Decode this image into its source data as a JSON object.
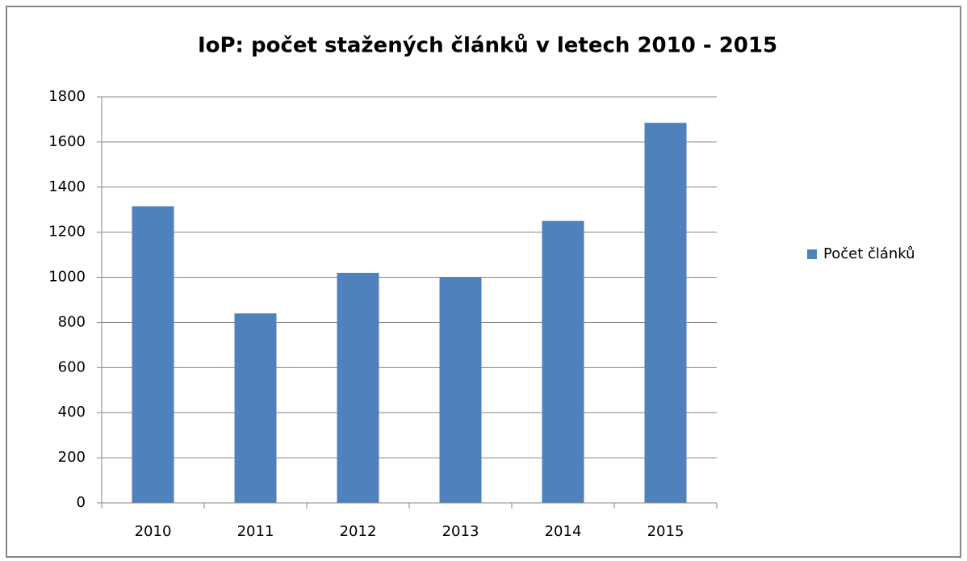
{
  "chart_data": {
    "type": "bar",
    "title": "IoP: počet stažených článků v letech 2010 - 2015",
    "categories": [
      "2010",
      "2011",
      "2012",
      "2013",
      "2014",
      "2015"
    ],
    "series": [
      {
        "name": "Počet článků",
        "color": "#4f81bd",
        "values": [
          1315,
          840,
          1020,
          1000,
          1250,
          1685
        ]
      }
    ],
    "ylim": [
      0,
      1800
    ],
    "yticks": [
      0,
      200,
      400,
      600,
      800,
      1000,
      1200,
      1400,
      1600,
      1800
    ],
    "grid": true,
    "legend": "right"
  }
}
